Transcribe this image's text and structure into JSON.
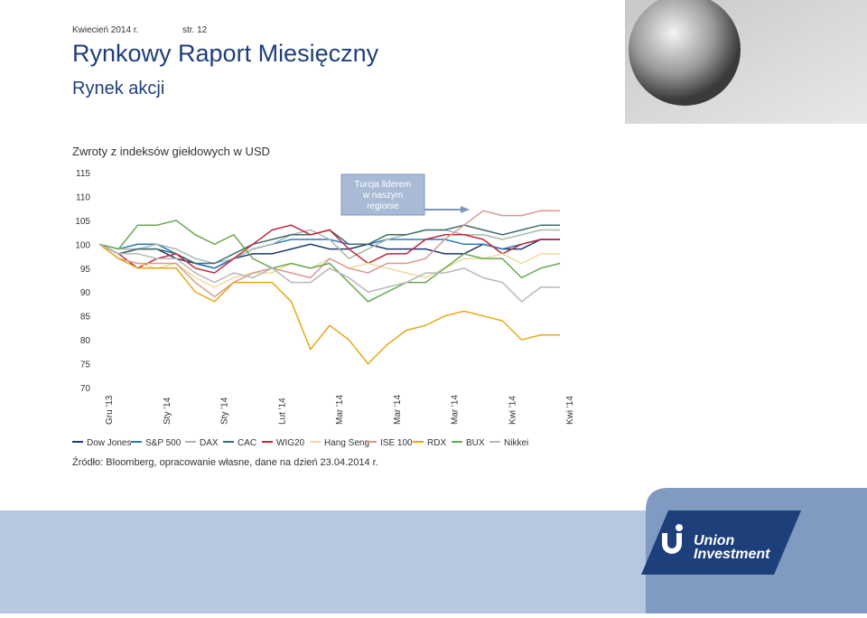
{
  "header": {
    "date": "Kwiecień 2014 r.",
    "page": "str. 12",
    "title": "Rynkowy Raport Miesięczny",
    "subtitle": "Rynek akcji"
  },
  "chart_data": {
    "type": "line",
    "title": "Zwroty z indeksów giełdowych w USD",
    "categories": [
      "Gru '13",
      null,
      null,
      "Sty '14",
      null,
      null,
      "Sty '14",
      null,
      null,
      "Lut '14",
      null,
      null,
      "Mar '14",
      null,
      null,
      "Mar '14",
      null,
      null,
      "Mar '14",
      null,
      null,
      "Kwi '14",
      null,
      null,
      "Kwi '14"
    ],
    "series": [
      {
        "name": "Dow Jones",
        "color": "#1f3a6b",
        "values": [
          100,
          98,
          99,
          99,
          97,
          96,
          95,
          97,
          98,
          98,
          99,
          100,
          99,
          99,
          100,
          99,
          99,
          99,
          98,
          98,
          100,
          99,
          99,
          101,
          101
        ]
      },
      {
        "name": "S&P 500",
        "color": "#2a7ab8",
        "values": [
          100,
          99,
          100,
          100,
          98,
          96,
          95,
          97,
          99,
          100,
          101,
          101,
          101,
          100,
          100,
          101,
          101,
          101,
          101,
          100,
          100,
          99,
          100,
          101,
          101
        ]
      },
      {
        "name": "DAX",
        "color": "#a9b7ab",
        "values": [
          100,
          99,
          99,
          100,
          99,
          97,
          96,
          97,
          99,
          100,
          102,
          103,
          101,
          97,
          99,
          101,
          102,
          103,
          103,
          102,
          102,
          101,
          102,
          103,
          103
        ]
      },
      {
        "name": "CAC",
        "color": "#3e6e6e",
        "values": [
          100,
          98,
          99,
          99,
          98,
          96,
          96,
          98,
          100,
          101,
          102,
          102,
          103,
          100,
          100,
          102,
          102,
          103,
          103,
          104,
          103,
          102,
          103,
          104,
          104
        ]
      },
      {
        "name": "WIG20",
        "color": "#c0283c",
        "values": [
          100,
          98,
          95,
          97,
          98,
          95,
          94,
          97,
          100,
          103,
          104,
          102,
          103,
          99,
          96,
          98,
          98,
          101,
          102,
          102,
          101,
          98,
          100,
          101,
          101
        ]
      },
      {
        "name": "Hang Seng",
        "color": "#efdc9c",
        "values": [
          100,
          97,
          96,
          95,
          96,
          93,
          91,
          93,
          94,
          94,
          96,
          95,
          97,
          95,
          96,
          95,
          94,
          93,
          95,
          97,
          97,
          98,
          96,
          98,
          98
        ]
      },
      {
        "name": "ISE 100",
        "color": "#d89a90",
        "values": [
          100,
          97,
          96,
          96,
          96,
          92,
          89,
          92,
          94,
          95,
          94,
          93,
          97,
          95,
          94,
          96,
          96,
          97,
          101,
          104,
          107,
          106,
          106,
          107,
          107
        ]
      },
      {
        "name": "RDX",
        "color": "#e6a817",
        "values": [
          100,
          97,
          95,
          95,
          95,
          90,
          88,
          92,
          92,
          92,
          88,
          78,
          83,
          80,
          75,
          79,
          82,
          83,
          85,
          86,
          85,
          84,
          80,
          81,
          81
        ]
      },
      {
        "name": "BUX",
        "color": "#6aa84f",
        "values": [
          100,
          99,
          104,
          104,
          105,
          102,
          100,
          102,
          97,
          95,
          96,
          95,
          96,
          92,
          88,
          90,
          92,
          92,
          95,
          98,
          97,
          97,
          93,
          95,
          96
        ]
      },
      {
        "name": "Nikkei",
        "color": "#b8b8b8",
        "values": [
          100,
          98,
          98,
          97,
          97,
          94,
          92,
          94,
          93,
          95,
          92,
          92,
          95,
          93,
          90,
          91,
          92,
          94,
          94,
          95,
          93,
          92,
          88,
          91,
          91
        ]
      }
    ],
    "ylim": [
      70,
      115
    ],
    "yticks": [
      70,
      75,
      80,
      85,
      90,
      95,
      100,
      105,
      110,
      115
    ],
    "grid": false,
    "annotation": [
      "Turcja liderem",
      "w naszym",
      "regionie"
    ],
    "source": "Źródło: Bloomberg, opracowanie własne, dane na dzień 23.04.2014 r."
  },
  "logo": [
    "Union",
    "Investment"
  ]
}
